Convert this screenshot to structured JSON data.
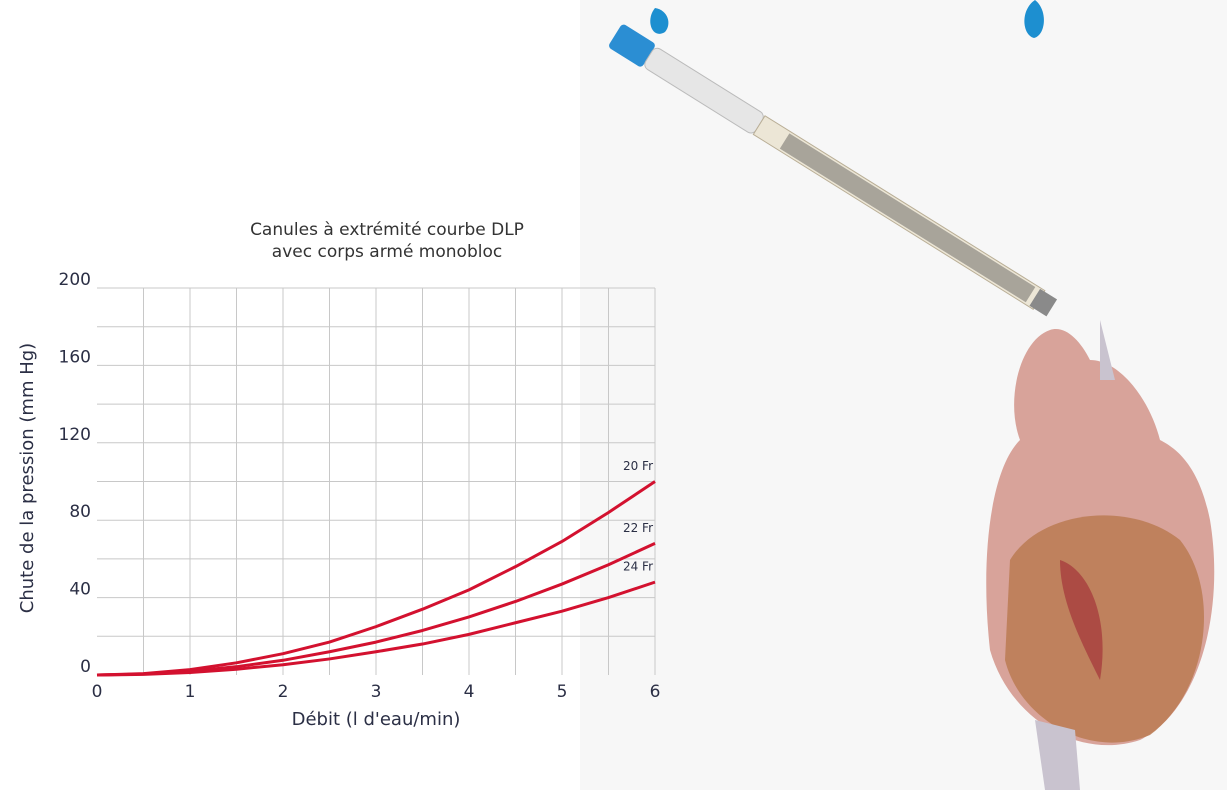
{
  "chart_data": {
    "type": "line",
    "title": [
      "Canules à extrémité courbe DLP",
      "avec corps armé monobloc"
    ],
    "x_label": "Débit (l d'eau/min)",
    "y_label": "Chute de la pression (mm Hg)",
    "x": [
      0,
      0.5,
      1,
      1.5,
      2,
      2.5,
      3,
      3.5,
      4,
      4.5,
      5,
      5.5,
      6
    ],
    "series": [
      {
        "name": "20 Fr",
        "color": "#d3112f",
        "values": [
          0,
          0.7,
          2.8,
          6.3,
          11,
          17,
          25,
          34,
          44,
          56,
          69,
          84,
          100
        ]
      },
      {
        "name": "22 Fr",
        "color": "#d3112f",
        "values": [
          0,
          0.5,
          1.9,
          4.3,
          7.6,
          12,
          17,
          23,
          30,
          38,
          47,
          57,
          68
        ]
      },
      {
        "name": "24 Fr",
        "color": "#d3112f",
        "values": [
          0,
          0.3,
          1.3,
          3,
          5.3,
          8.3,
          12,
          16,
          21,
          27,
          33,
          40,
          48
        ]
      }
    ],
    "xlim": [
      0,
      6
    ],
    "xticks": [
      0,
      1,
      2,
      3,
      4,
      5,
      6
    ],
    "ylim": [
      0,
      200
    ],
    "yticks": [
      0,
      40,
      80,
      120,
      160,
      200
    ],
    "minor_xticks": [
      0.5,
      1.5,
      2.5,
      3.5,
      4.5,
      5.5
    ],
    "minor_yticks": [
      20,
      60,
      100,
      140,
      180
    ],
    "grid": true
  }
}
